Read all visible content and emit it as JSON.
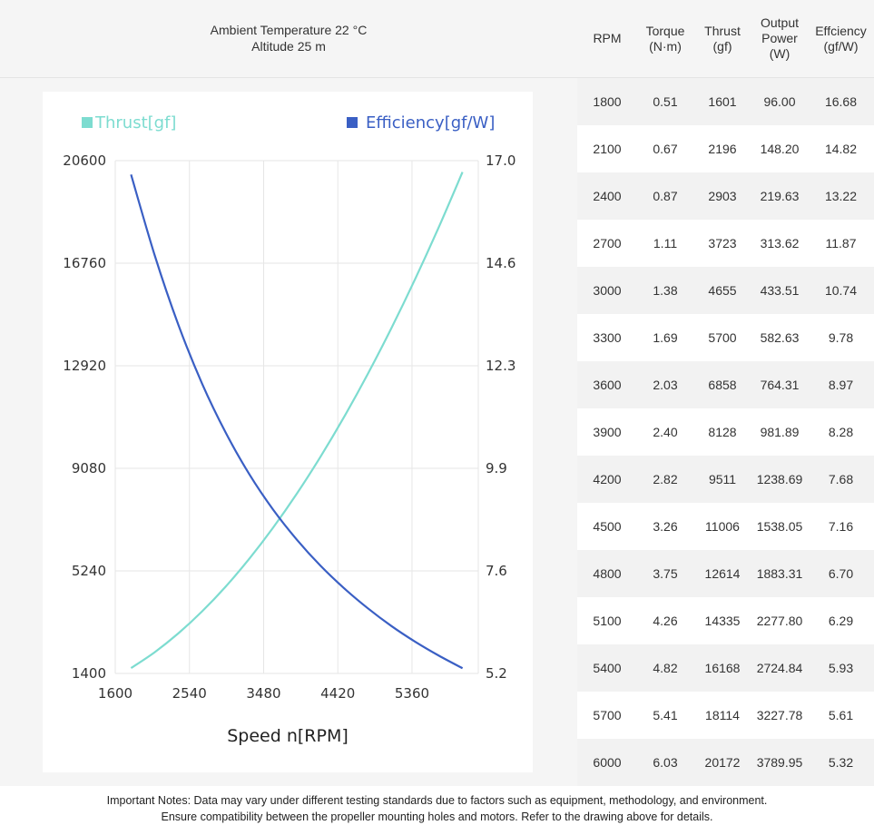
{
  "conditions": {
    "line1": "Ambient Temperature 22 °C",
    "line2": "Altitude 25 m"
  },
  "table": {
    "headers": [
      {
        "lines": [
          "RPM"
        ]
      },
      {
        "lines": [
          "Torque",
          "(N·m)"
        ]
      },
      {
        "lines": [
          "Thrust",
          "(gf)"
        ]
      },
      {
        "lines": [
          "Output",
          "Power",
          "(W)"
        ]
      },
      {
        "lines": [
          "Effciency",
          "(gf/W)"
        ]
      }
    ],
    "rows": [
      [
        "1800",
        "0.51",
        "1601",
        "96.00",
        "16.68"
      ],
      [
        "2100",
        "0.67",
        "2196",
        "148.20",
        "14.82"
      ],
      [
        "2400",
        "0.87",
        "2903",
        "219.63",
        "13.22"
      ],
      [
        "2700",
        "1.11",
        "3723",
        "313.62",
        "11.87"
      ],
      [
        "3000",
        "1.38",
        "4655",
        "433.51",
        "10.74"
      ],
      [
        "3300",
        "1.69",
        "5700",
        "582.63",
        "9.78"
      ],
      [
        "3600",
        "2.03",
        "6858",
        "764.31",
        "8.97"
      ],
      [
        "3900",
        "2.40",
        "8128",
        "981.89",
        "8.28"
      ],
      [
        "4200",
        "2.82",
        "9511",
        "1238.69",
        "7.68"
      ],
      [
        "4500",
        "3.26",
        "11006",
        "1538.05",
        "7.16"
      ],
      [
        "4800",
        "3.75",
        "12614",
        "1883.31",
        "6.70"
      ],
      [
        "5100",
        "4.26",
        "14335",
        "2277.80",
        "6.29"
      ],
      [
        "5400",
        "4.82",
        "16168",
        "2724.84",
        "5.93"
      ],
      [
        "5700",
        "5.41",
        "18114",
        "3227.78",
        "5.61"
      ],
      [
        "6000",
        "6.03",
        "20172",
        "3789.95",
        "5.32"
      ]
    ]
  },
  "chart_data": {
    "type": "line",
    "xlabel": "Speed n[RPM]",
    "xlim": [
      1600,
      6200
    ],
    "xticks": [
      "1600",
      "2540",
      "3480",
      "4420",
      "5360"
    ],
    "ylim_left": [
      1400,
      20600
    ],
    "yticks_left": [
      "1400",
      "5240",
      "9080",
      "12920",
      "16760",
      "20600"
    ],
    "ylim_right": [
      5.2,
      17.0
    ],
    "yticks_right": [
      "5.2",
      "7.6",
      "9.9",
      "12.3",
      "14.6",
      "17.0"
    ],
    "grid": true,
    "legend_position": "top",
    "x": [
      1800,
      2100,
      2400,
      2700,
      3000,
      3300,
      3600,
      3900,
      4200,
      4500,
      4800,
      5100,
      5400,
      5700,
      6000
    ],
    "series": [
      {
        "name": "Thrust[gf]",
        "axis": "left",
        "color": "#7ddcd0",
        "values": [
          1601,
          2196,
          2903,
          3723,
          4655,
          5700,
          6858,
          8128,
          9511,
          11006,
          12614,
          14335,
          16168,
          18114,
          20172
        ]
      },
      {
        "name": "Efficiency[gf/W]",
        "axis": "right",
        "color": "#3a5fc4",
        "values": [
          16.68,
          14.82,
          13.22,
          11.87,
          10.74,
          9.78,
          8.97,
          8.28,
          7.68,
          7.16,
          6.7,
          6.29,
          5.93,
          5.61,
          5.32
        ]
      }
    ]
  },
  "footer": {
    "line1": "Important Notes: Data may vary under different testing standards due to factors such as equipment, methodology, and environment.",
    "line2": "Ensure compatibility between the propeller mounting holes and motors. Refer to the drawing above for details."
  }
}
